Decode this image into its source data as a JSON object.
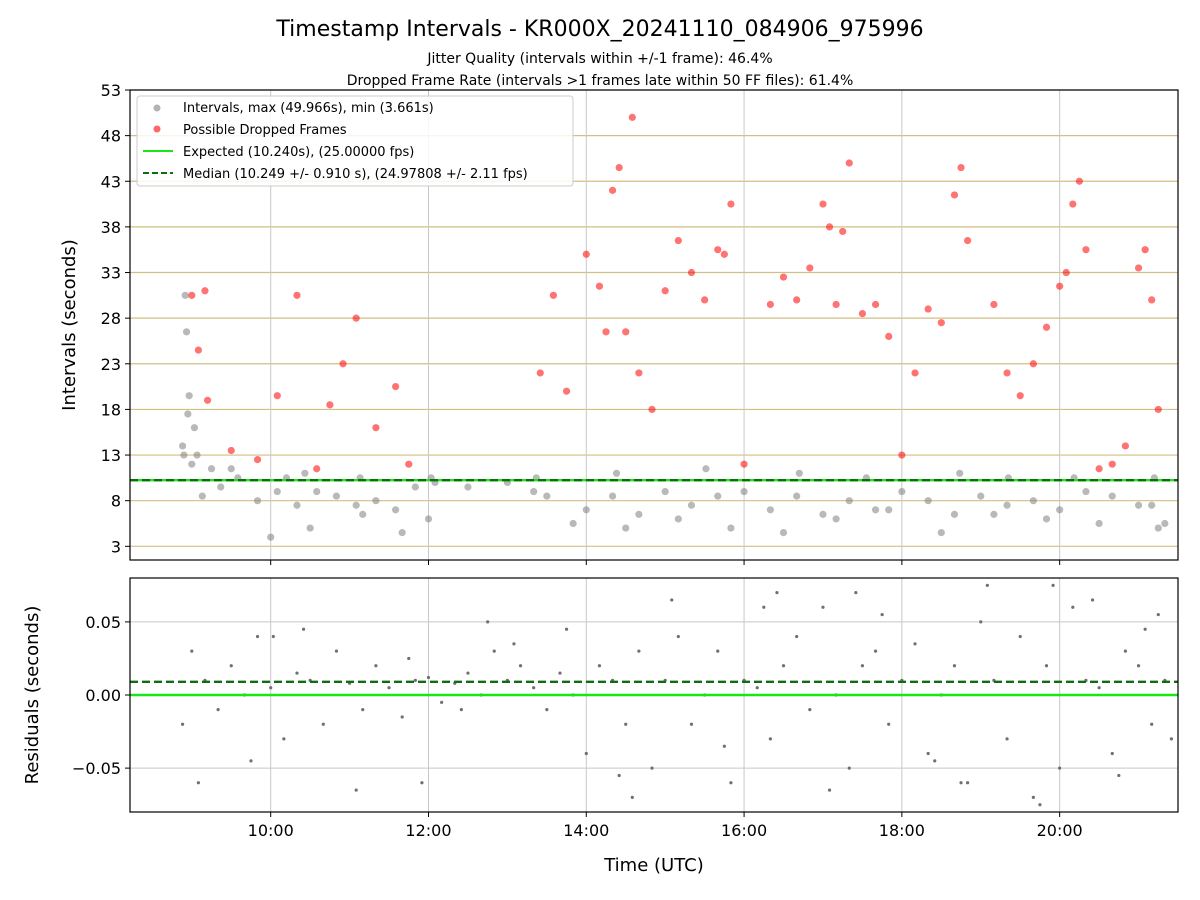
{
  "chart_data": [
    {
      "type": "scatter",
      "title": "Timestamp Intervals - KR000X_20241110_084906_975996",
      "subtitle_1": "Jitter Quality (intervals within +/-1 frame): 46.4%",
      "subtitle_2": "Dropped Frame Rate (intervals >1 frames late within 50 FF files): 61.4%",
      "ylabel": "Intervals (seconds)",
      "xlim": [
        "08:13",
        "21:30"
      ],
      "ylim": [
        1.5,
        53
      ],
      "yticks": [
        3,
        8,
        13,
        18,
        23,
        28,
        33,
        38,
        43,
        48,
        53
      ],
      "ytick_labels": [
        "3",
        "8",
        "13",
        "18",
        "23",
        "28",
        "33",
        "38",
        "43",
        "48",
        "53"
      ],
      "grid": "horizontal (tan) + vertical at x ticks (light gray)",
      "legend_position": "top-left",
      "legend": [
        "Intervals, max (49.966s), min (3.661s)",
        "Possible Dropped Frames",
        "Expected (10.240s), (25.00000 fps)",
        "Median (10.249 +/- 0.910 s), (24.97808 +/- 2.11 fps)"
      ],
      "series": [
        {
          "name": "Intervals, max (49.966s), min (3.661s)",
          "color": "#808080",
          "x": [
            "08:53",
            "08:55",
            "08:57",
            "09:00",
            "09:04",
            "09:08",
            "09:15",
            "09:22",
            "09:35",
            "09:50",
            "10:05",
            "10:20",
            "10:35",
            "10:50",
            "11:05",
            "11:20",
            "11:35",
            "11:50",
            "12:05",
            "12:30",
            "13:00",
            "13:30",
            "14:00",
            "14:20",
            "14:40",
            "15:00",
            "15:20",
            "15:40",
            "16:00",
            "16:20",
            "16:40",
            "17:00",
            "17:20",
            "17:40",
            "18:00",
            "18:20",
            "18:40",
            "19:00",
            "19:20",
            "19:40",
            "20:00",
            "20:20",
            "20:40",
            "21:00",
            "21:20",
            "08:56",
            "08:58",
            "09:02",
            "10:00",
            "10:30",
            "11:10",
            "11:40",
            "12:00",
            "13:20",
            "13:50",
            "14:30",
            "15:10",
            "15:50",
            "16:30",
            "17:10",
            "17:50",
            "18:30",
            "19:10",
            "19:50",
            "20:30",
            "21:10",
            "21:15",
            "08:54",
            "09:30",
            "10:12",
            "10:26",
            "11:08",
            "12:02",
            "13:22",
            "14:23",
            "15:31",
            "16:42",
            "17:33",
            "18:44",
            "19:21",
            "20:11",
            "21:12"
          ],
          "values": [
            14.0,
            30.5,
            17.5,
            12.0,
            13.0,
            8.5,
            11.5,
            9.5,
            10.5,
            8.0,
            9.0,
            7.5,
            9.0,
            8.5,
            7.5,
            8.0,
            7.0,
            9.5,
            10.0,
            9.5,
            10.0,
            8.5,
            7.0,
            8.5,
            6.5,
            9.0,
            7.5,
            8.5,
            9.0,
            7.0,
            8.5,
            6.5,
            8.0,
            7.0,
            9.0,
            8.0,
            6.5,
            8.5,
            7.5,
            8.0,
            7.0,
            9.0,
            8.5,
            7.5,
            5.5,
            26.5,
            19.5,
            16.0,
            4.0,
            5.0,
            6.5,
            4.5,
            6.0,
            9.0,
            5.5,
            5.0,
            6.0,
            5.0,
            4.5,
            6.0,
            7.0,
            4.5,
            6.5,
            6.0,
            5.5,
            7.5,
            5.0,
            13.0,
            11.5,
            10.5,
            11.0,
            10.5,
            10.5,
            10.5,
            11.0,
            11.5,
            11.0,
            10.5,
            11.0,
            10.5,
            10.5,
            10.5
          ]
        },
        {
          "name": "Possible Dropped Frames",
          "color": "#ff0000",
          "x": [
            "09:00",
            "09:05",
            "09:10",
            "09:12",
            "09:30",
            "09:50",
            "10:05",
            "10:20",
            "10:35",
            "10:45",
            "10:55",
            "11:05",
            "11:20",
            "11:35",
            "11:45",
            "13:25",
            "13:35",
            "13:45",
            "14:00",
            "14:10",
            "14:15",
            "14:20",
            "14:25",
            "14:30",
            "14:35",
            "14:40",
            "14:50",
            "15:00",
            "15:10",
            "15:20",
            "15:30",
            "15:40",
            "15:45",
            "15:50",
            "16:00",
            "16:20",
            "16:30",
            "16:40",
            "16:50",
            "17:00",
            "17:05",
            "17:10",
            "17:15",
            "17:20",
            "17:30",
            "17:40",
            "17:50",
            "18:00",
            "18:10",
            "18:20",
            "18:30",
            "18:40",
            "18:45",
            "18:50",
            "19:10",
            "19:20",
            "19:30",
            "19:40",
            "19:50",
            "20:00",
            "20:05",
            "20:10",
            "20:15",
            "20:20",
            "20:30",
            "20:40",
            "20:50",
            "21:00",
            "21:05",
            "21:10",
            "21:15"
          ],
          "values": [
            30.5,
            24.5,
            31.0,
            19.0,
            13.5,
            12.5,
            19.5,
            30.5,
            11.5,
            18.5,
            23.0,
            28.0,
            16.0,
            20.5,
            12.0,
            22.0,
            30.5,
            20.0,
            35.0,
            31.5,
            26.5,
            42.0,
            44.5,
            26.5,
            50.0,
            22.0,
            18.0,
            31.0,
            36.5,
            33.0,
            30.0,
            35.5,
            35.0,
            40.5,
            12.0,
            29.5,
            32.5,
            30.0,
            33.5,
            40.5,
            38.0,
            29.5,
            37.5,
            45.0,
            28.5,
            29.5,
            26.0,
            13.0,
            22.0,
            29.0,
            27.5,
            41.5,
            44.5,
            36.5,
            29.5,
            22.0,
            19.5,
            23.0,
            27.0,
            31.5,
            33.0,
            40.5,
            43.0,
            35.5,
            11.5,
            12.0,
            14.0,
            33.5,
            35.5,
            30.0,
            18.0
          ]
        }
      ],
      "reference_lines": [
        {
          "name": "Expected (10.240s), (25.00000 fps)",
          "value": 10.24,
          "color": "#19e619",
          "style": "solid"
        },
        {
          "name": "Median (10.249 +/- 0.910 s), (24.97808 +/- 2.11 fps)",
          "value": 10.249,
          "color": "#0d6e0d",
          "style": "dashed"
        }
      ]
    },
    {
      "type": "scatter",
      "ylabel": "Residuals (seconds)",
      "xlabel": "Time (UTC)",
      "xlim": [
        "08:13",
        "21:30"
      ],
      "xticks": [
        "10:00",
        "12:00",
        "14:00",
        "16:00",
        "18:00",
        "20:00"
      ],
      "ylim": [
        -0.08,
        0.08
      ],
      "yticks": [
        -0.05,
        0.0,
        0.05
      ],
      "ytick_labels": [
        "−0.05",
        "0.00",
        "0.05"
      ],
      "grid": "on (light gray)",
      "series": [
        {
          "name": "Residuals",
          "color": "#707070",
          "x": [
            "08:53",
            "09:00",
            "09:10",
            "09:20",
            "09:30",
            "09:40",
            "09:50",
            "10:00",
            "10:10",
            "10:20",
            "10:30",
            "10:40",
            "10:50",
            "11:00",
            "11:10",
            "11:20",
            "11:30",
            "11:40",
            "11:50",
            "12:00",
            "12:10",
            "12:20",
            "12:30",
            "12:40",
            "12:50",
            "13:00",
            "13:10",
            "13:20",
            "13:30",
            "13:40",
            "13:50",
            "14:00",
            "14:10",
            "14:20",
            "14:30",
            "14:40",
            "14:50",
            "15:00",
            "15:10",
            "15:20",
            "15:30",
            "15:40",
            "15:50",
            "16:00",
            "16:10",
            "16:20",
            "16:30",
            "16:40",
            "16:50",
            "17:00",
            "17:10",
            "17:20",
            "17:30",
            "17:40",
            "17:50",
            "18:00",
            "18:10",
            "18:20",
            "18:30",
            "18:40",
            "18:50",
            "19:00",
            "19:10",
            "19:20",
            "19:30",
            "19:40",
            "19:50",
            "20:00",
            "20:10",
            "20:20",
            "20:30",
            "20:40",
            "20:50",
            "21:00",
            "21:10",
            "21:20",
            "09:05",
            "09:45",
            "10:25",
            "11:05",
            "11:45",
            "12:25",
            "13:05",
            "13:45",
            "14:25",
            "15:05",
            "15:45",
            "16:25",
            "17:05",
            "17:45",
            "18:25",
            "19:05",
            "19:45",
            "20:25",
            "21:05",
            "21:25",
            "10:02",
            "11:55",
            "12:45",
            "14:35",
            "16:15",
            "17:25",
            "18:45",
            "19:55",
            "20:45",
            "21:15"
          ],
          "values": [
            -0.02,
            0.03,
            0.01,
            -0.01,
            0.02,
            0.0,
            0.04,
            0.005,
            -0.03,
            0.015,
            0.01,
            -0.02,
            0.03,
            0.008,
            -0.01,
            0.02,
            0.005,
            -0.015,
            0.01,
            0.012,
            -0.005,
            0.008,
            0.015,
            0.0,
            0.03,
            0.01,
            0.02,
            0.005,
            -0.01,
            0.015,
            0.0,
            -0.04,
            0.02,
            0.01,
            -0.02,
            0.03,
            -0.05,
            0.01,
            0.04,
            -0.02,
            0.0,
            0.03,
            -0.06,
            0.01,
            0.005,
            -0.03,
            0.02,
            0.04,
            -0.01,
            0.06,
            0.0,
            -0.05,
            0.02,
            0.03,
            -0.02,
            0.01,
            0.035,
            -0.04,
            0.0,
            0.02,
            -0.06,
            0.05,
            0.01,
            -0.03,
            0.04,
            -0.07,
            0.02,
            -0.05,
            0.06,
            0.01,
            0.005,
            -0.04,
            0.03,
            0.02,
            -0.02,
            0.01,
            -0.06,
            -0.045,
            0.045,
            -0.065,
            0.025,
            -0.01,
            0.035,
            0.045,
            -0.055,
            0.065,
            -0.035,
            0.07,
            -0.065,
            0.055,
            -0.045,
            0.075,
            -0.075,
            0.065,
            0.045,
            -0.03,
            0.04,
            -0.06,
            0.05,
            -0.07,
            0.06,
            0.07,
            -0.06,
            0.075,
            -0.055,
            0.055
          ]
        }
      ],
      "reference_lines": [
        {
          "value": 0.0,
          "color": "#19e619",
          "style": "solid"
        },
        {
          "value": 0.009,
          "color": "#0d6e0d",
          "style": "dashed"
        }
      ]
    }
  ]
}
